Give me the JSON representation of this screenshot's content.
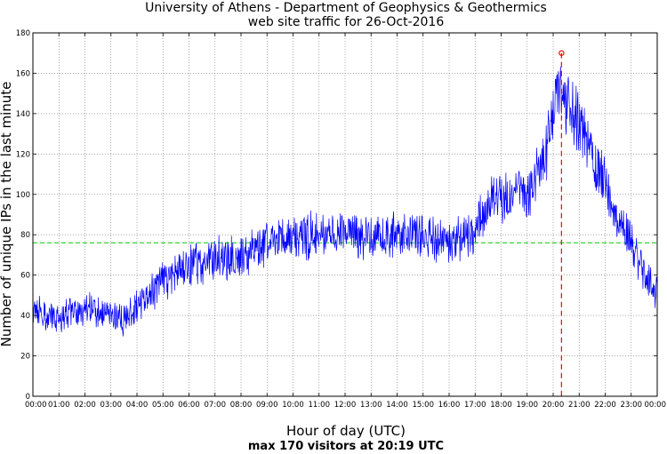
{
  "chart_data": {
    "type": "line",
    "title": "University of Athens - Department of Geophysics & Geothermics",
    "subtitle": "web site traffic for 26-Oct-2016",
    "xlabel": "Hour of day (UTC)",
    "ylabel": "Number of unique IPs in the last minute",
    "caption": "max 170 visitors at 20:19 UTC",
    "xlim": [
      0,
      24
    ],
    "ylim": [
      0,
      180
    ],
    "yticks": [
      0,
      20,
      40,
      60,
      80,
      100,
      120,
      140,
      160,
      180
    ],
    "xtick_labels": [
      "00:00",
      "01:00",
      "02:00",
      "03:00",
      "04:00",
      "05:00",
      "06:00",
      "07:00",
      "08:00",
      "09:00",
      "10:00",
      "11:00",
      "12:00",
      "13:00",
      "14:00",
      "15:00",
      "16:00",
      "17:00",
      "18:00",
      "19:00",
      "20:00",
      "21:00",
      "22:00",
      "23:00",
      "00:00"
    ],
    "grid": true,
    "series": [
      {
        "name": "unique IPs",
        "color": "#0000ff",
        "hourly_values": [
          42,
          38,
          44,
          40,
          38,
          44,
          57,
          64,
          68,
          69,
          75,
          79,
          80,
          80,
          79,
          80,
          79,
          76,
          82,
          98,
          100,
          118,
          148,
          142,
          125,
          105,
          87,
          70,
          60,
          52
        ],
        "hours": [
          0,
          1,
          2,
          3,
          3.5,
          4,
          5,
          6,
          7,
          8,
          9,
          10,
          11,
          12,
          13,
          14,
          15,
          16,
          17,
          17.5,
          19,
          19.7,
          20.1,
          20.7,
          21.3,
          22,
          22.6,
          23.2,
          23.6,
          24
        ]
      }
    ],
    "mean_line": {
      "value": 76,
      "color": "#00cc00"
    },
    "peak": {
      "x": 20.32,
      "value": 170,
      "color": "#ff0000"
    }
  }
}
